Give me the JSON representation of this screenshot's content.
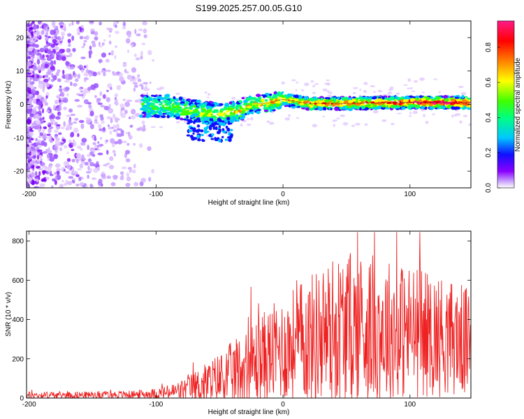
{
  "chart_data": [
    {
      "type": "heatmap",
      "title": "S199.2025.257.00.05.G10",
      "xlabel": "Height of straight line (km)",
      "ylabel": "Frequency (Hz)",
      "xlim": [
        -202,
        148
      ],
      "ylim": [
        -25,
        25
      ],
      "xticks": [
        -200,
        -100,
        0,
        100
      ],
      "yticks": [
        -20,
        -10,
        0,
        10,
        20
      ],
      "colorbar": {
        "label": "Normalized spectral amplitude",
        "range": [
          0.0,
          0.95
        ],
        "ticks": [
          0.0,
          0.2,
          0.4,
          0.6,
          0.8
        ],
        "colors": [
          "#ffffff",
          "#c9a0ff",
          "#8a00ff",
          "#1010ff",
          "#00c8ff",
          "#00ff80",
          "#40ff00",
          "#ffff00",
          "#ff8000",
          "#ff0000",
          "#ff1a8a"
        ]
      },
      "ridge": [
        {
          "x": -110,
          "y": -0.5
        },
        {
          "x": -90,
          "y": -0.5
        },
        {
          "x": -70,
          "y": -2.0
        },
        {
          "x": -50,
          "y": -3.0
        },
        {
          "x": -35,
          "y": -2.0
        },
        {
          "x": -25,
          "y": 0.0
        },
        {
          "x": -10,
          "y": 0.5
        },
        {
          "x": 0,
          "y": 1.5
        },
        {
          "x": 20,
          "y": 0.3
        },
        {
          "x": 50,
          "y": 0.3
        },
        {
          "x": 100,
          "y": 0.6
        },
        {
          "x": 148,
          "y": 0.5
        }
      ]
    },
    {
      "type": "line",
      "xlabel": "Height of straight line (km)",
      "ylabel": "SNR (10 * v/v)",
      "xlim": [
        -202,
        148
      ],
      "ylim": [
        0,
        850
      ],
      "xticks": [
        -200,
        -100,
        0,
        100
      ],
      "yticks": [
        0,
        200,
        400,
        600,
        800
      ],
      "series": [
        {
          "name": "SNR",
          "color": "#ee2222",
          "x": [
            -202,
            -180,
            -150,
            -120,
            -100,
            -90,
            -80,
            -70,
            -60,
            -50,
            -40,
            -30,
            -20,
            -10,
            0,
            10,
            20,
            30,
            40,
            50,
            60,
            70,
            80,
            90,
            100,
            110,
            120,
            130,
            140,
            145,
            148
          ],
          "base": [
            15,
            15,
            16,
            18,
            22,
            28,
            38,
            55,
            75,
            95,
            120,
            150,
            190,
            220,
            250,
            275,
            300,
            320,
            340,
            350,
            360,
            355,
            350,
            345,
            340,
            330,
            320,
            310,
            300,
            280,
            280
          ],
          "amp": [
            18,
            18,
            18,
            20,
            28,
            40,
            55,
            80,
            110,
            140,
            170,
            200,
            230,
            250,
            270,
            300,
            330,
            360,
            390,
            400,
            390,
            380,
            370,
            360,
            350,
            330,
            320,
            300,
            290,
            280,
            280
          ]
        }
      ]
    }
  ]
}
